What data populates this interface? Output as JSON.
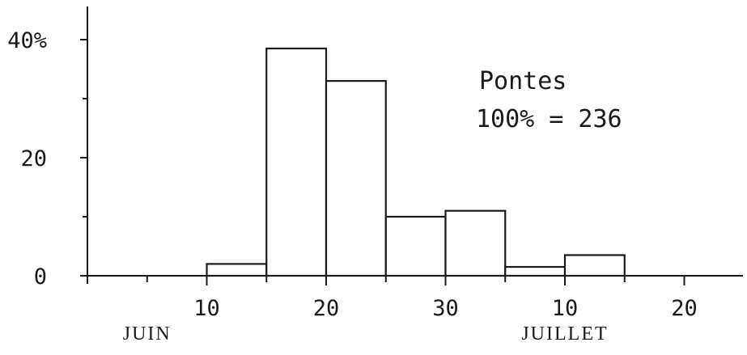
{
  "chart_data": {
    "type": "bar",
    "title": "",
    "annotations": [
      "Pontes",
      "100% = 236"
    ],
    "y_ticks": [
      "40%",
      "20",
      "0"
    ],
    "y_tick_values": [
      40,
      20,
      0
    ],
    "y_minor_ticks": [
      10,
      30
    ],
    "ylim": [
      0,
      45
    ],
    "xlim": [
      0,
      110
    ],
    "x_ticks": [
      "10",
      "20",
      "30",
      "10",
      "20"
    ],
    "x_tick_values": [
      10,
      20,
      30,
      40,
      50
    ],
    "x_minor_ticks": [
      5,
      15,
      25,
      35,
      45
    ],
    "month_labels": [
      {
        "label": "JUIN",
        "x": 5
      },
      {
        "label": "JUILLET",
        "x": 40
      }
    ],
    "bin_width": 5,
    "bins": [
      {
        "start": 10,
        "end": 15,
        "value": 2
      },
      {
        "start": 15,
        "end": 20,
        "value": 38.5
      },
      {
        "start": 20,
        "end": 25,
        "value": 33
      },
      {
        "start": 25,
        "end": 30,
        "value": 10
      },
      {
        "start": 30,
        "end": 35,
        "value": 11
      },
      {
        "start": 35,
        "end": 40,
        "value": 1.5
      },
      {
        "start": 40,
        "end": 45,
        "value": 3.5
      }
    ],
    "grid": false,
    "legend": "none"
  }
}
